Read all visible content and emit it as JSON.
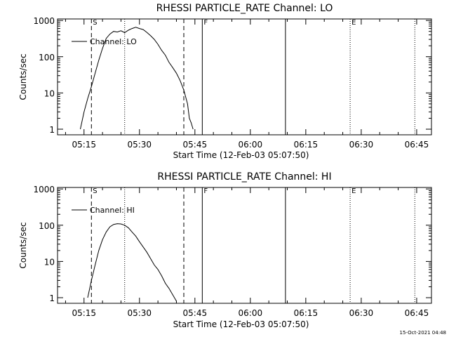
{
  "chart_data": [
    {
      "type": "line",
      "title": "RHESSI PARTICLE_RATE Channel: LO",
      "xlabel": "Start Time (12-Feb-03 05:07:50)",
      "ylabel": "Counts/sec",
      "y_scale": "log",
      "ylim": [
        0.7,
        1100
      ],
      "xlim": [
        "05:07:50",
        "06:49:00"
      ],
      "xticks": [
        "05:15",
        "05:30",
        "05:45",
        "06:00",
        "06:15",
        "06:30",
        "06:45"
      ],
      "yticks": [
        "1",
        "10",
        "100",
        "1000"
      ],
      "legend": {
        "label": "Channel: LO",
        "location": "top-left"
      },
      "markers": [
        {
          "time": "05:17:00",
          "style": "dashed",
          "label": "S"
        },
        {
          "time": "05:26:00",
          "style": "dotted",
          "label": ""
        },
        {
          "time": "05:42:00",
          "style": "dashed",
          "label": ""
        },
        {
          "time": "05:47:00",
          "style": "solid",
          "label": "F"
        },
        {
          "time": "06:09:30",
          "style": "solid",
          "label": ""
        },
        {
          "time": "06:27:00",
          "style": "dotted",
          "label": "E"
        },
        {
          "time": "06:44:30",
          "style": "dotted",
          "label": ""
        }
      ],
      "series": [
        {
          "name": "Channel: LO",
          "x": [
            "05:14:00",
            "05:15:00",
            "05:16:00",
            "05:17:00",
            "05:18:00",
            "05:19:00",
            "05:20:00",
            "05:21:00",
            "05:22:00",
            "05:23:00",
            "05:24:00",
            "05:25:00",
            "05:26:00",
            "05:27:00",
            "05:28:00",
            "05:29:00",
            "05:30:00",
            "05:31:00",
            "05:32:00",
            "05:33:00",
            "05:34:00",
            "05:35:00",
            "05:36:00",
            "05:37:00",
            "05:38:00",
            "05:39:00",
            "05:40:00",
            "05:41:00",
            "05:42:00",
            "05:43:00",
            "05:43:30",
            "05:44:00",
            "05:44:30"
          ],
          "y": [
            1,
            3,
            7,
            15,
            35,
            80,
            170,
            320,
            420,
            500,
            480,
            520,
            460,
            540,
            600,
            650,
            600,
            560,
            470,
            380,
            300,
            220,
            150,
            110,
            70,
            50,
            35,
            22,
            12,
            5,
            2,
            1.5,
            1
          ]
        }
      ]
    },
    {
      "type": "line",
      "title": "RHESSI PARTICLE_RATE Channel: HI",
      "xlabel": "Start Time (12-Feb-03 05:07:50)",
      "ylabel": "Counts/sec",
      "y_scale": "log",
      "ylim": [
        0.7,
        1100
      ],
      "xlim": [
        "05:07:50",
        "06:49:00"
      ],
      "xticks": [
        "05:15",
        "05:30",
        "05:45",
        "06:00",
        "06:15",
        "06:30",
        "06:45"
      ],
      "yticks": [
        "1",
        "10",
        "100",
        "1000"
      ],
      "legend": {
        "label": "Channel: HI",
        "location": "top-left"
      },
      "markers": [
        {
          "time": "05:17:00",
          "style": "dashed",
          "label": "S"
        },
        {
          "time": "05:26:00",
          "style": "dotted",
          "label": ""
        },
        {
          "time": "05:42:00",
          "style": "dashed",
          "label": ""
        },
        {
          "time": "05:47:00",
          "style": "solid",
          "label": "F"
        },
        {
          "time": "06:09:30",
          "style": "solid",
          "label": ""
        },
        {
          "time": "06:27:00",
          "style": "dotted",
          "label": "E"
        },
        {
          "time": "06:44:30",
          "style": "dotted",
          "label": ""
        }
      ],
      "series": [
        {
          "name": "Channel: HI",
          "x": [
            "05:16:00",
            "05:17:00",
            "05:18:00",
            "05:19:00",
            "05:20:00",
            "05:21:00",
            "05:22:00",
            "05:23:00",
            "05:24:00",
            "05:25:00",
            "05:26:00",
            "05:27:00",
            "05:28:00",
            "05:29:00",
            "05:30:00",
            "05:31:00",
            "05:32:00",
            "05:33:00",
            "05:34:00",
            "05:35:00",
            "05:36:00",
            "05:37:00",
            "05:38:00",
            "05:39:00",
            "05:40:00"
          ],
          "y": [
            1,
            3,
            8,
            20,
            40,
            65,
            90,
            105,
            110,
            108,
            100,
            85,
            65,
            50,
            35,
            25,
            18,
            12,
            8,
            6,
            4,
            2.5,
            1.8,
            1.2,
            0.8
          ]
        }
      ]
    }
  ],
  "timestamp": "15-Oct-2021 04:48"
}
